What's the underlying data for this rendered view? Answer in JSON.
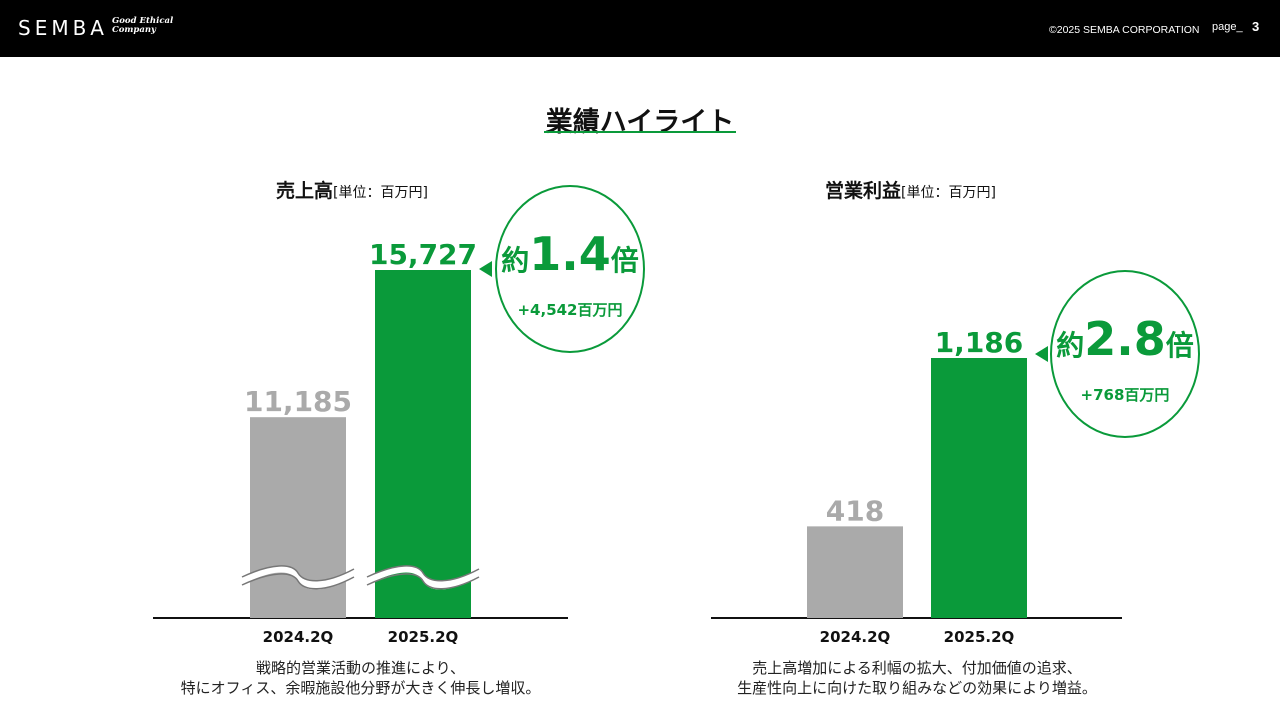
{
  "header": {
    "logo": "SEMBA",
    "tagline_line1": "Good Ethical",
    "tagline_line2": "Company",
    "copyright": "©2025 SEMBA CORPORATION",
    "page_label": "page_",
    "page_number": "3"
  },
  "page_title": "業績ハイライト",
  "colors": {
    "accent": "#0a9a3a",
    "prev_bar": "#aaaaaa",
    "header_bg": "#000000"
  },
  "chart_data": [
    {
      "type": "bar",
      "title": "売上高",
      "unit": "[単位：百万円]",
      "categories": [
        "2024.2Q",
        "2025.2Q"
      ],
      "values": [
        11185,
        15727
      ],
      "value_labels": [
        "11,185",
        "15,727"
      ],
      "axis_break": true,
      "ratio_prefix": "約",
      "ratio_value": "1.4",
      "ratio_suffix": "倍",
      "diff": "+4,542百万円",
      "caption_line1": "戦略的営業活動の推進により、",
      "caption_line2": "特にオフィス、余暇施設他分野が大きく伸長し増収。"
    },
    {
      "type": "bar",
      "title": "営業利益",
      "unit": "[単位：百万円]",
      "categories": [
        "2024.2Q",
        "2025.2Q"
      ],
      "values": [
        418,
        1186
      ],
      "value_labels": [
        "418",
        "1,186"
      ],
      "axis_break": false,
      "ylim": [
        0,
        1186
      ],
      "ratio_prefix": "約",
      "ratio_value": "2.8",
      "ratio_suffix": "倍",
      "diff": "+768百万円",
      "caption_line1": "売上高増加による利幅の拡大、付加価値の追求、",
      "caption_line2": "生産性向上に向けた取り組みなどの効果により増益。"
    }
  ]
}
